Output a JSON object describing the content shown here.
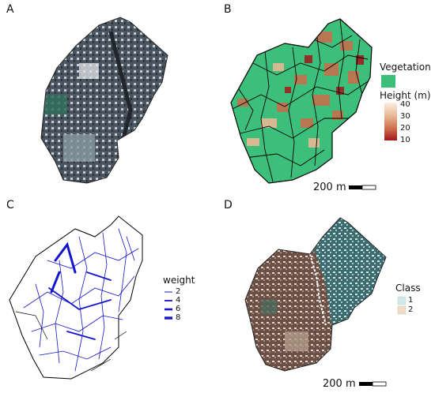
{
  "panels": {
    "a": {
      "label": "A"
    },
    "b": {
      "label": "B"
    },
    "c": {
      "label": "C"
    },
    "d": {
      "label": "D"
    }
  },
  "legend_b": {
    "vegetation_title": "Vegetation",
    "vegetation_color": "#3cbf7a",
    "height_title": "Height (m)",
    "height_ticks": [
      "40",
      "30",
      "20",
      "10"
    ],
    "height_gradient": [
      "#fbeee0",
      "#e8b894",
      "#cc6a4a",
      "#a3161a"
    ]
  },
  "legend_c": {
    "title": "weight",
    "items": [
      "2",
      "4",
      "6",
      "8"
    ],
    "color": "#1414cc"
  },
  "legend_d": {
    "title": "Class",
    "items": [
      {
        "label": "1",
        "color": "#cfe9e6"
      },
      {
        "label": "2",
        "color": "#efdcc8"
      }
    ]
  },
  "scalebar": {
    "label_b": "200 m",
    "label_d": "200 m"
  }
}
